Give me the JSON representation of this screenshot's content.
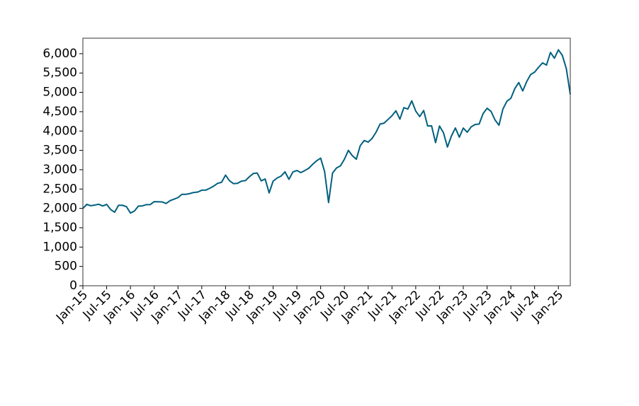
{
  "chart_data": {
    "type": "line",
    "color": "#00607f",
    "x": [
      "2015-01",
      "2015-02",
      "2015-03",
      "2015-04",
      "2015-05",
      "2015-06",
      "2015-07",
      "2015-08",
      "2015-09",
      "2015-10",
      "2015-11",
      "2015-12",
      "2016-01",
      "2016-02",
      "2016-03",
      "2016-04",
      "2016-05",
      "2016-06",
      "2016-07",
      "2016-08",
      "2016-09",
      "2016-10",
      "2016-11",
      "2016-12",
      "2017-01",
      "2017-02",
      "2017-03",
      "2017-04",
      "2017-05",
      "2017-06",
      "2017-07",
      "2017-08",
      "2017-09",
      "2017-10",
      "2017-11",
      "2017-12",
      "2018-01",
      "2018-02",
      "2018-03",
      "2018-04",
      "2018-05",
      "2018-06",
      "2018-07",
      "2018-08",
      "2018-09",
      "2018-10",
      "2018-11",
      "2018-12",
      "2019-01",
      "2019-02",
      "2019-03",
      "2019-04",
      "2019-05",
      "2019-06",
      "2019-07",
      "2019-08",
      "2019-09",
      "2019-10",
      "2019-11",
      "2019-12",
      "2020-01",
      "2020-02",
      "2020-03",
      "2020-04",
      "2020-05",
      "2020-06",
      "2020-07",
      "2020-08",
      "2020-09",
      "2020-10",
      "2020-11",
      "2020-12",
      "2021-01",
      "2021-02",
      "2021-03",
      "2021-04",
      "2021-05",
      "2021-06",
      "2021-07",
      "2021-08",
      "2021-09",
      "2021-10",
      "2021-11",
      "2021-12",
      "2022-01",
      "2022-02",
      "2022-03",
      "2022-04",
      "2022-05",
      "2022-06",
      "2022-07",
      "2022-08",
      "2022-09",
      "2022-10",
      "2022-11",
      "2022-12",
      "2023-01",
      "2023-02",
      "2023-03",
      "2023-04",
      "2023-05",
      "2023-06",
      "2023-07",
      "2023-08",
      "2023-09",
      "2023-10",
      "2023-11",
      "2023-12",
      "2024-01",
      "2024-02",
      "2024-03",
      "2024-04",
      "2024-05",
      "2024-06",
      "2024-07",
      "2024-08",
      "2024-09",
      "2024-10",
      "2024-11",
      "2024-12",
      "2025-01",
      "2025-02",
      "2025-03",
      "2025-04"
    ],
    "values": [
      2000,
      2105,
      2068,
      2086,
      2107,
      2063,
      2104,
      1972,
      1900,
      2079,
      2080,
      2044,
      1880,
      1932,
      2060,
      2065,
      2097,
      2099,
      2174,
      2171,
      2168,
      2126,
      2199,
      2239,
      2279,
      2364,
      2363,
      2384,
      2412,
      2423,
      2470,
      2472,
      2519,
      2575,
      2648,
      2674,
      2860,
      2714,
      2641,
      2648,
      2705,
      2718,
      2816,
      2902,
      2914,
      2712,
      2760,
      2400,
      2704,
      2784,
      2834,
      2946,
      2752,
      2942,
      2980,
      2926,
      2977,
      3038,
      3141,
      3231,
      3300,
      2954,
      2150,
      2912,
      3044,
      3100,
      3271,
      3500,
      3363,
      3270,
      3622,
      3756,
      3714,
      3811,
      3973,
      4181,
      4204,
      4298,
      4395,
      4523,
      4308,
      4605,
      4567,
      4780,
      4516,
      4374,
      4530,
      4132,
      4132,
      3700,
      4130,
      3955,
      3586,
      3872,
      4080,
      3840,
      4077,
      3970,
      4109,
      4169,
      4180,
      4450,
      4589,
      4508,
      4288,
      4150,
      4568,
      4770,
      4846,
      5096,
      5254,
      5036,
      5278,
      5460,
      5522,
      5648,
      5762,
      5705,
      6032,
      5882,
      6100,
      5955,
      5612,
      4950
    ],
    "xlim": [
      "2015-01",
      "2025-04"
    ],
    "xticks": [
      {
        "value": "2015-01",
        "label": "Jan-15"
      },
      {
        "value": "2015-07",
        "label": "Jul-15"
      },
      {
        "value": "2016-01",
        "label": "Jan-16"
      },
      {
        "value": "2016-07",
        "label": "Jul-16"
      },
      {
        "value": "2017-01",
        "label": "Jan-17"
      },
      {
        "value": "2017-07",
        "label": "Jul-17"
      },
      {
        "value": "2018-01",
        "label": "Jan-18"
      },
      {
        "value": "2018-07",
        "label": "Jul-18"
      },
      {
        "value": "2019-01",
        "label": "Jan-19"
      },
      {
        "value": "2019-07",
        "label": "Jul-19"
      },
      {
        "value": "2020-01",
        "label": "Jan-20"
      },
      {
        "value": "2020-07",
        "label": "Jul-20"
      },
      {
        "value": "2021-01",
        "label": "Jan-21"
      },
      {
        "value": "2021-07",
        "label": "Jul-21"
      },
      {
        "value": "2022-01",
        "label": "Jan-22"
      },
      {
        "value": "2022-07",
        "label": "Jul-22"
      },
      {
        "value": "2023-01",
        "label": "Jan-23"
      },
      {
        "value": "2023-07",
        "label": "Jul-23"
      },
      {
        "value": "2024-01",
        "label": "Jan-24"
      },
      {
        "value": "2024-07",
        "label": "Jul-24"
      },
      {
        "value": "2025-01",
        "label": "Jan-25"
      }
    ],
    "ylim": [
      0,
      6400
    ],
    "yticks": [
      0,
      500,
      {
        "value": 1000,
        "label": "1,000"
      },
      {
        "value": 1500,
        "label": "1,500"
      },
      {
        "value": 2000,
        "label": "2,000"
      },
      {
        "value": 2500,
        "label": "2,500"
      },
      {
        "value": 3000,
        "label": "3,000"
      },
      {
        "value": 3500,
        "label": "3,500"
      },
      {
        "value": 4000,
        "label": "4,000"
      },
      {
        "value": 4500,
        "label": "4,500"
      },
      {
        "value": 5000,
        "label": "5,000"
      },
      {
        "value": 5500,
        "label": "5,500"
      },
      {
        "value": 6000,
        "label": "6,000"
      }
    ]
  }
}
